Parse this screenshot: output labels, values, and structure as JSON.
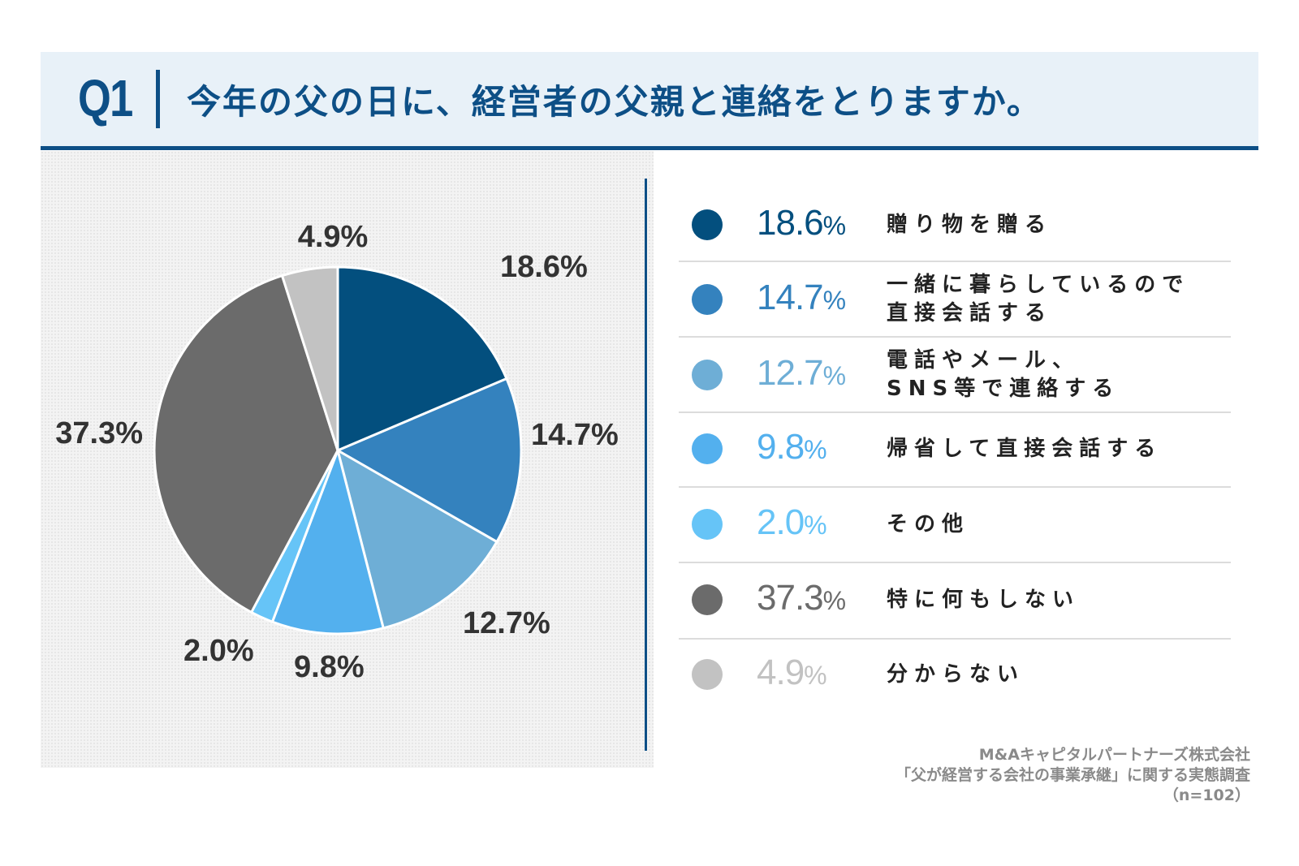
{
  "header": {
    "q_label": "Q1",
    "question": "今年の父の日に、経営者の父親と連絡をとりますか。"
  },
  "colors": {
    "brand": "#0d4f86",
    "header_bg": "#e8f1f8"
  },
  "chart_data": {
    "type": "pie",
    "title": "今年の父の日に、経営者の父親と連絡をとりますか。",
    "unit": "%",
    "slices": [
      {
        "label_line1": "贈り物を贈る",
        "label_line2": "",
        "value": 18.6,
        "value_text": "18.6",
        "pct_label": "18.6%",
        "color": "#034f7e"
      },
      {
        "label_line1": "一緒に暮らしているので",
        "label_line2": "直接会話する",
        "value": 14.7,
        "value_text": "14.7",
        "pct_label": "14.7%",
        "color": "#3482be"
      },
      {
        "label_line1": "電話やメール、",
        "label_line2": "SNS等で連絡する",
        "value": 12.7,
        "value_text": "12.7",
        "pct_label": "12.7%",
        "color": "#6eaed6"
      },
      {
        "label_line1": "帰省して直接会話する",
        "label_line2": "",
        "value": 9.8,
        "value_text": "9.8",
        "pct_label": "9.8%",
        "color": "#53b0ee"
      },
      {
        "label_line1": "その他",
        "label_line2": "",
        "value": 2.0,
        "value_text": "2.0",
        "pct_label": "2.0%",
        "color": "#66c4f7"
      },
      {
        "label_line1": "特に何もしない",
        "label_line2": "",
        "value": 37.3,
        "value_text": "37.3",
        "pct_label": "37.3%",
        "color": "#6b6b6b"
      },
      {
        "label_line1": "分からない",
        "label_line2": "",
        "value": 4.9,
        "value_text": "4.9",
        "pct_label": "4.9%",
        "color": "#c2c2c2"
      }
    ]
  },
  "source": {
    "line1": "M&Aキャピタルパートナーズ株式会社",
    "line2": "「父が経営する会社の事業承継」に関する実態調査",
    "line3": "（n=102）"
  }
}
